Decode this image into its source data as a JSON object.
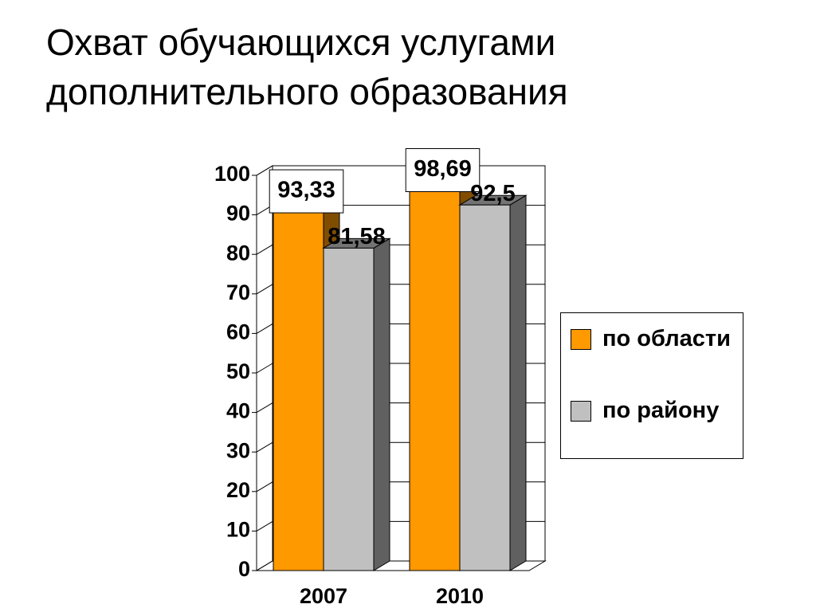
{
  "chart_data": {
    "type": "bar3d",
    "title": "Охват обучающихся услугами дополнительного образования",
    "categories": [
      "2007",
      "2010"
    ],
    "series": [
      {
        "name": "по области",
        "color": "#ff9900",
        "values": [
          93.33,
          98.69
        ],
        "value_labels": [
          "93,33",
          "98,69"
        ]
      },
      {
        "name": "по району",
        "color": "#c0c0c0",
        "values": [
          81.58,
          92.5
        ],
        "value_labels": [
          "81,58",
          "92,5"
        ]
      }
    ],
    "ylim": [
      0,
      100
    ],
    "yticks": [
      0,
      10,
      20,
      30,
      40,
      50,
      60,
      70,
      80,
      90,
      100
    ],
    "grid": true,
    "legend": "right"
  }
}
